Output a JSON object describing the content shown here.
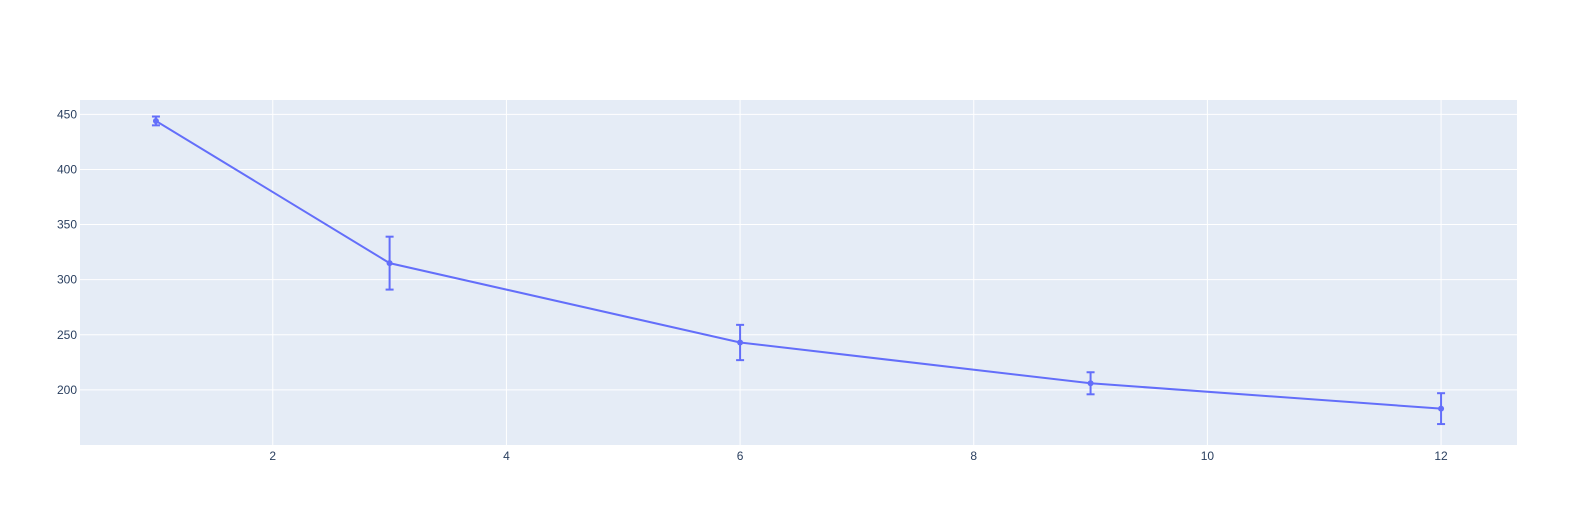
{
  "chart_data": {
    "type": "line",
    "title": "",
    "xlabel": "",
    "ylabel": "",
    "xlim": [
      0.35,
      12.65
    ],
    "ylim": [
      150,
      463
    ],
    "x_ticks": [
      2,
      4,
      6,
      8,
      10,
      12
    ],
    "y_ticks": [
      200,
      250,
      300,
      350,
      400,
      450
    ],
    "grid": true,
    "legend": "none",
    "series": [
      {
        "x": [
          1,
          3,
          6,
          9,
          12
        ],
        "y": [
          444,
          315,
          243,
          206,
          183
        ],
        "error": [
          4,
          24,
          16,
          10,
          14
        ]
      }
    ],
    "colors": {
      "line": "#636efa",
      "plot_background": "#e5ecf6",
      "grid": "#ffffff",
      "tick_text": "#2a3f5f"
    }
  }
}
